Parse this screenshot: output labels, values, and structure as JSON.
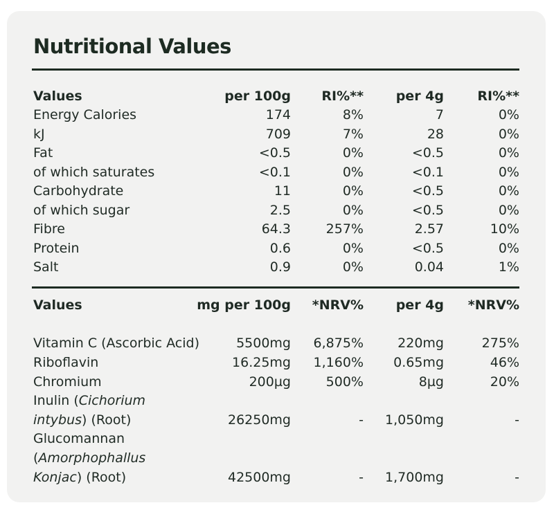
{
  "title": "Nutritional Values",
  "table1": {
    "headers": [
      "Values",
      "per 100g",
      "RI%**",
      "per 4g",
      "RI%**"
    ],
    "rows": [
      [
        "Energy Calories",
        "174",
        "8%",
        "7",
        "0%"
      ],
      [
        "kJ",
        "709",
        "7%",
        "28",
        "0%"
      ],
      [
        "Fat",
        "<0.5",
        "0%",
        "<0.5",
        "0%"
      ],
      [
        "of which saturates",
        "<0.1",
        "0%",
        "<0.1",
        "0%"
      ],
      [
        "Carbohydrate",
        "11",
        "0%",
        "<0.5",
        "0%"
      ],
      [
        "of which sugar",
        "2.5",
        "0%",
        "<0.5",
        "0%"
      ],
      [
        "Fibre",
        "64.3",
        "257%",
        "2.57",
        "10%"
      ],
      [
        "Protein",
        "0.6",
        "0%",
        "<0.5",
        "0%"
      ],
      [
        "Salt",
        "0.9",
        "0%",
        "0.04",
        "1%"
      ]
    ]
  },
  "table2": {
    "headers": [
      "Values",
      "mg per 100g",
      "*NRV%",
      "per 4g",
      "*NRV%"
    ],
    "rows": [
      [
        "Vitamin C (Ascorbic Acid)",
        "5500mg",
        "6,875%",
        "220mg",
        "275%"
      ],
      [
        "Riboflavin",
        "16.25mg",
        "1,160%",
        "0.65mg",
        "46%"
      ],
      [
        "Chromium",
        "200µg",
        "500%",
        "8µg",
        "20%"
      ]
    ],
    "inulin": {
      "line1_prefix": "Inulin (",
      "line1_italic": "Cichorium",
      "line2_italic": "intybus",
      "line2_suffix": ") (Root)",
      "per100": "26250mg",
      "nrv100": "-",
      "per4": "1,050mg",
      "nrv4": "-"
    },
    "glucomannan": {
      "line1": "Glucomannan",
      "line2_prefix": "(",
      "line2_italic": "Amorphophallus",
      "line3_italic": "Konjac",
      "line3_suffix": ") (Root)",
      "per100": "42500mg",
      "nrv100": "-",
      "per4": "1,700mg",
      "nrv4": "-"
    }
  }
}
